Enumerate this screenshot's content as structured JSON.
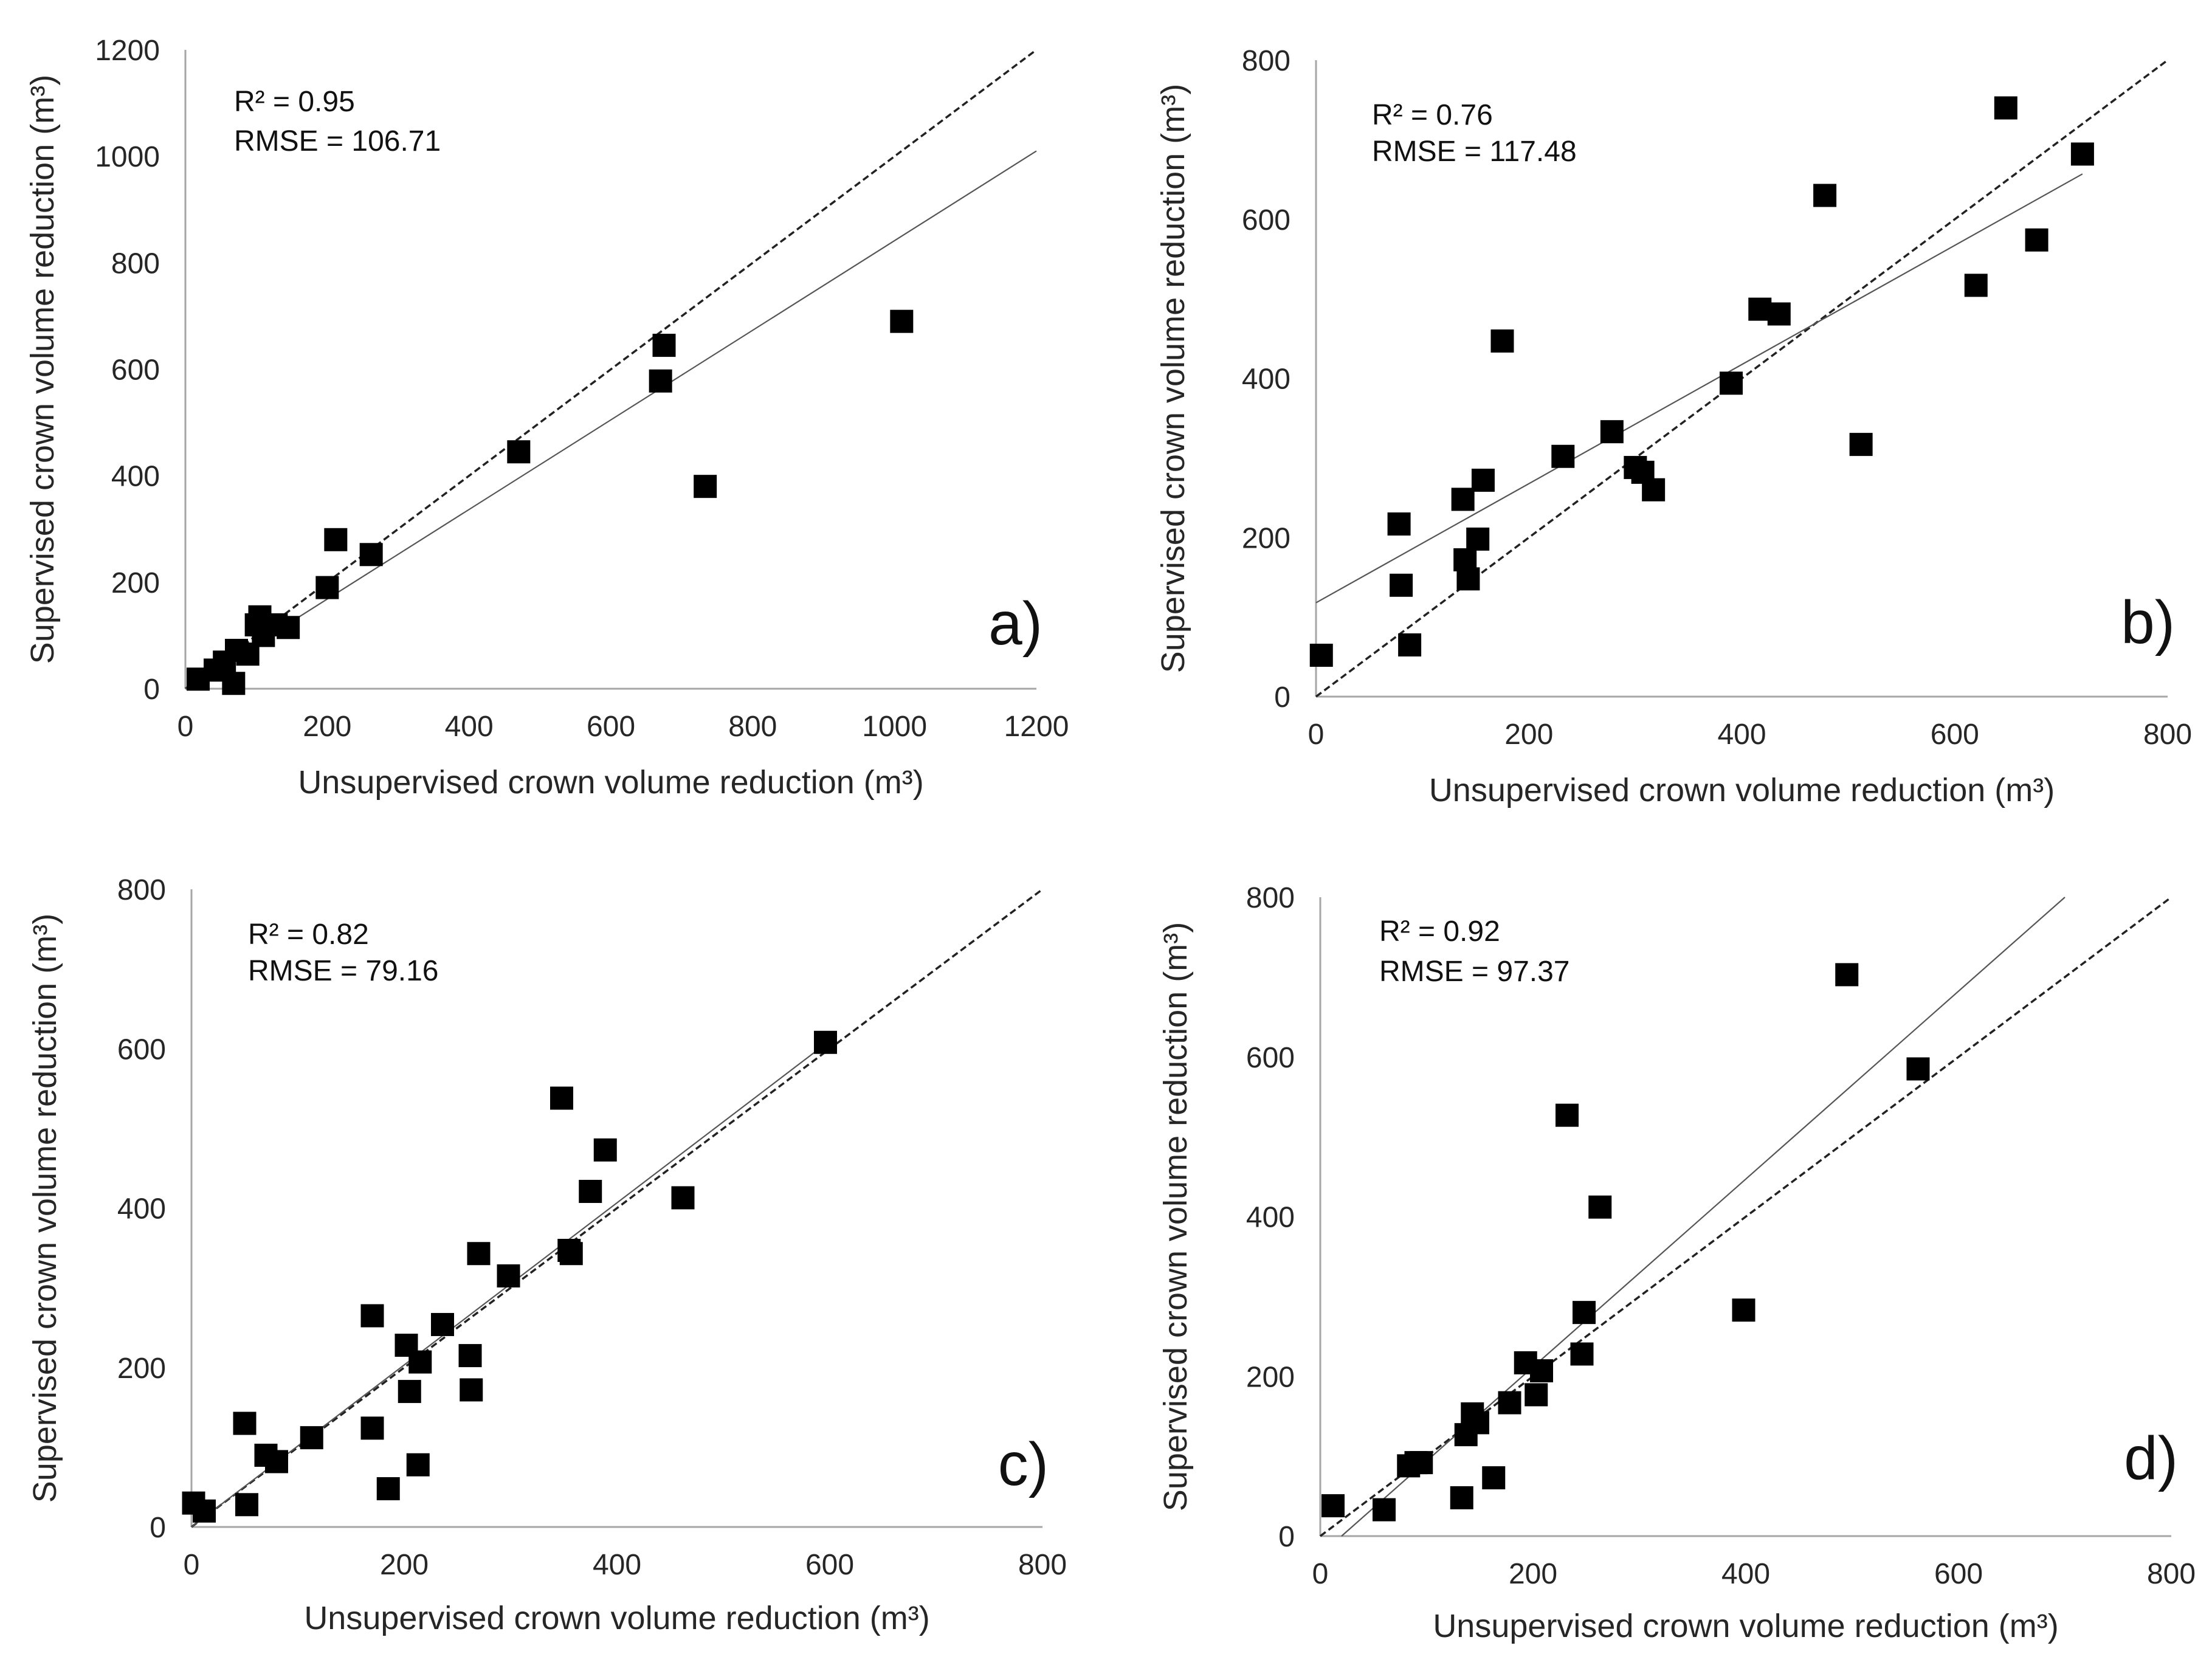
{
  "chart_data": [
    {
      "type": "scatter",
      "panel_label": "a)",
      "xlabel": "Unsupervised crown volume reduction (m³)",
      "ylabel": "Supervised crown volume reduction (m³)",
      "xlim": [
        0,
        1200
      ],
      "ylim": [
        0,
        1200
      ],
      "xticks": [
        0,
        200,
        400,
        600,
        800,
        1000,
        1200
      ],
      "yticks": [
        0,
        200,
        400,
        600,
        800,
        1000,
        1200
      ],
      "r2_text": "R² = 0.95",
      "rmse_text": "RMSE = 106.71",
      "one_to_one": {
        "style": "dashed",
        "x": [
          0,
          1200
        ],
        "y": [
          0,
          1200
        ]
      },
      "fit_line": {
        "style": "solid",
        "x": [
          0,
          1200
        ],
        "y": [
          0,
          1010
        ]
      },
      "points": [
        [
          18,
          18
        ],
        [
          42,
          35
        ],
        [
          55,
          50
        ],
        [
          68,
          10
        ],
        [
          72,
          72
        ],
        [
          88,
          65
        ],
        [
          100,
          120
        ],
        [
          105,
          135
        ],
        [
          110,
          100
        ],
        [
          128,
          120
        ],
        [
          145,
          115
        ],
        [
          200,
          190
        ],
        [
          212,
          280
        ],
        [
          262,
          252
        ],
        [
          470,
          445
        ],
        [
          670,
          578
        ],
        [
          675,
          645
        ],
        [
          733,
          380
        ],
        [
          1010,
          690
        ]
      ]
    },
    {
      "type": "scatter",
      "panel_label": "b)",
      "xlabel": "Unsupervised crown volume reduction (m³)",
      "ylabel": "Supervised crown volume reduction (m³)",
      "xlim": [
        0,
        800
      ],
      "ylim": [
        0,
        800
      ],
      "xticks": [
        0,
        200,
        400,
        600,
        800
      ],
      "yticks": [
        0,
        200,
        400,
        600,
        800
      ],
      "r2_text": "R² = 0.76",
      "rmse_text": "RMSE = 117.48",
      "one_to_one": {
        "style": "dashed",
        "x": [
          0,
          800
        ],
        "y": [
          0,
          800
        ]
      },
      "fit_line": {
        "style": "solid",
        "x": [
          0,
          720
        ],
        "y": [
          118,
          657
        ]
      },
      "points": [
        [
          5,
          52
        ],
        [
          78,
          217
        ],
        [
          80,
          140
        ],
        [
          88,
          65
        ],
        [
          138,
          248
        ],
        [
          140,
          172
        ],
        [
          143,
          148
        ],
        [
          152,
          198
        ],
        [
          157,
          272
        ],
        [
          175,
          447
        ],
        [
          232,
          302
        ],
        [
          278,
          333
        ],
        [
          300,
          288
        ],
        [
          307,
          282
        ],
        [
          317,
          260
        ],
        [
          390,
          394
        ],
        [
          417,
          487
        ],
        [
          435,
          481
        ],
        [
          478,
          630
        ],
        [
          512,
          317
        ],
        [
          620,
          517
        ],
        [
          648,
          740
        ],
        [
          677,
          574
        ],
        [
          720,
          682
        ]
      ]
    },
    {
      "type": "scatter",
      "panel_label": "c)",
      "xlabel": "Unsupervised crown volume reduction (m³)",
      "ylabel": "Supervised crown volume reduction (m³)",
      "xlim": [
        0,
        800
      ],
      "ylim": [
        0,
        800
      ],
      "xticks": [
        0,
        200,
        400,
        600,
        800
      ],
      "yticks": [
        0,
        200,
        400,
        600,
        800
      ],
      "r2_text": "R² = 0.82",
      "rmse_text": "RMSE = 79.16",
      "one_to_one": {
        "style": "dashed",
        "x": [
          0,
          800
        ],
        "y": [
          0,
          800
        ]
      },
      "fit_line": {
        "style": "solid",
        "x": [
          0,
          600
        ],
        "y": [
          0,
          610
        ]
      },
      "points": [
        [
          2,
          30
        ],
        [
          12,
          20
        ],
        [
          50,
          130
        ],
        [
          52,
          28
        ],
        [
          70,
          90
        ],
        [
          80,
          82
        ],
        [
          113,
          112
        ],
        [
          170,
          265
        ],
        [
          170,
          124
        ],
        [
          185,
          48
        ],
        [
          202,
          228
        ],
        [
          205,
          170
        ],
        [
          213,
          78
        ],
        [
          215,
          207
        ],
        [
          236,
          254
        ],
        [
          262,
          215
        ],
        [
          263,
          172
        ],
        [
          270,
          343
        ],
        [
          298,
          315
        ],
        [
          348,
          538
        ],
        [
          355,
          347
        ],
        [
          357,
          343
        ],
        [
          375,
          421
        ],
        [
          389,
          473
        ],
        [
          462,
          413
        ],
        [
          596,
          608
        ]
      ]
    },
    {
      "type": "scatter",
      "panel_label": "d)",
      "xlabel": "Unsupervised crown volume reduction (m³)",
      "ylabel": "Supervised crown volume reduction (m³)",
      "xlim": [
        0,
        800
      ],
      "ylim": [
        0,
        800
      ],
      "xticks": [
        0,
        200,
        400,
        600,
        800
      ],
      "yticks": [
        0,
        200,
        400,
        600,
        800
      ],
      "r2_text": "R² = 0.92",
      "rmse_text": "RMSE = 97.37",
      "one_to_one": {
        "style": "dashed",
        "x": [
          0,
          800
        ],
        "y": [
          0,
          800
        ]
      },
      "fit_line": {
        "style": "solid",
        "x": [
          20,
          700
        ],
        "y": [
          0,
          800
        ]
      },
      "points": [
        [
          12,
          38
        ],
        [
          60,
          33
        ],
        [
          83,
          88
        ],
        [
          90,
          92
        ],
        [
          95,
          92
        ],
        [
          133,
          48
        ],
        [
          137,
          127
        ],
        [
          143,
          153
        ],
        [
          148,
          142
        ],
        [
          163,
          73
        ],
        [
          178,
          167
        ],
        [
          193,
          217
        ],
        [
          203,
          177
        ],
        [
          208,
          207
        ],
        [
          232,
          527
        ],
        [
          246,
          228
        ],
        [
          248,
          280
        ],
        [
          263,
          412
        ],
        [
          398,
          283
        ],
        [
          495,
          703
        ],
        [
          562,
          585
        ]
      ]
    }
  ]
}
